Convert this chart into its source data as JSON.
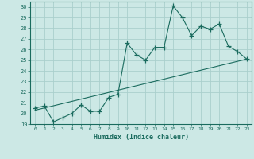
{
  "xlabel": "Humidex (Indice chaleur)",
  "ylabel": "",
  "xlim": [
    -0.5,
    23.5
  ],
  "ylim": [
    19,
    30.5
  ],
  "yticks": [
    19,
    20,
    21,
    22,
    23,
    24,
    25,
    26,
    27,
    28,
    29,
    30
  ],
  "xticks": [
    0,
    1,
    2,
    3,
    4,
    5,
    6,
    7,
    8,
    9,
    10,
    11,
    12,
    13,
    14,
    15,
    16,
    17,
    18,
    19,
    20,
    21,
    22,
    23
  ],
  "xtick_labels": [
    "0",
    "1",
    "2",
    "3",
    "4",
    "5",
    "6",
    "7",
    "8",
    "9",
    "10",
    "11",
    "12",
    "13",
    "14",
    "15",
    "16",
    "17",
    "18",
    "19",
    "20",
    "21",
    "22",
    "23"
  ],
  "bg_color": "#cce8e5",
  "grid_color": "#aacfcc",
  "line_color": "#1a6b5e",
  "line1_x": [
    0,
    1,
    2,
    3,
    4,
    5,
    6,
    7,
    8,
    9,
    10,
    11,
    12,
    13,
    14,
    15,
    16,
    17,
    18,
    19,
    20,
    21,
    22,
    23
  ],
  "line1_y": [
    20.5,
    20.7,
    19.2,
    19.6,
    20.0,
    20.8,
    20.2,
    20.2,
    21.5,
    21.8,
    26.6,
    25.5,
    25.0,
    26.2,
    26.2,
    30.1,
    29.0,
    27.3,
    28.2,
    27.9,
    28.4,
    26.3,
    25.8,
    25.1
  ],
  "line2_x": [
    0,
    23
  ],
  "line2_y": [
    20.3,
    25.1
  ]
}
